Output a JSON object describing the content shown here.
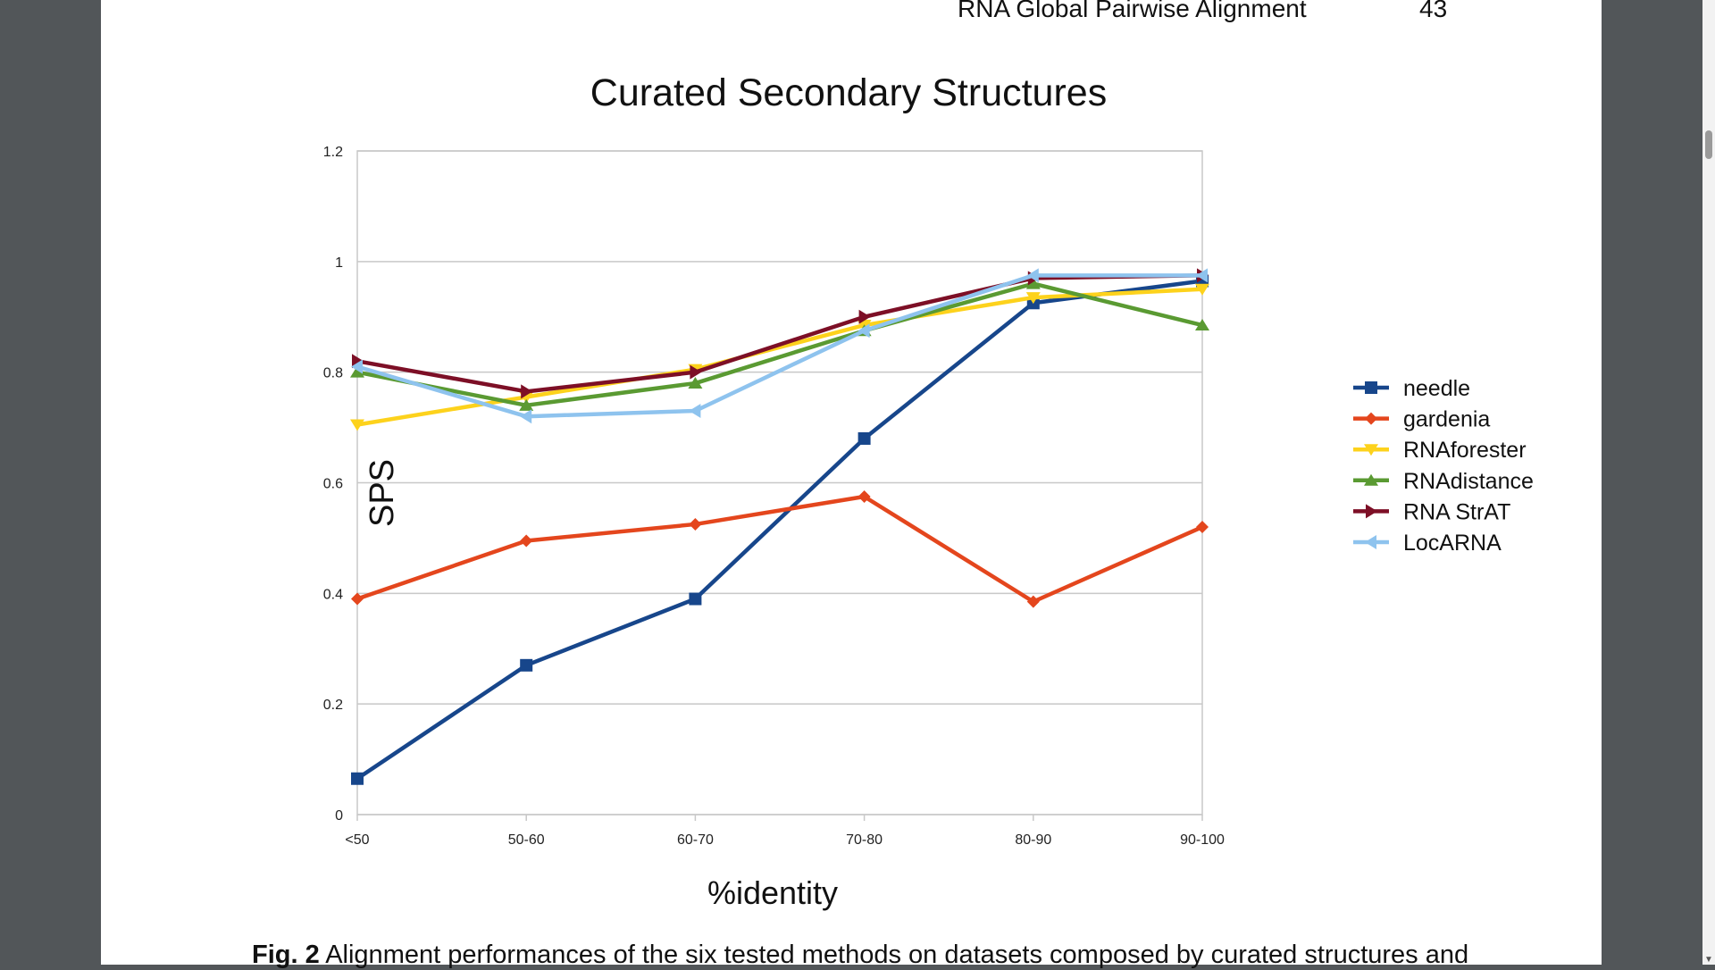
{
  "header": {
    "running_head": "RNA Global Pairwise Alignment",
    "page_number": "43"
  },
  "caption": {
    "fig_label": "Fig. 2",
    "text": "Alignment performances of the six tested methods on datasets composed by curated structures and"
  },
  "chart_data": {
    "type": "line",
    "title": "Curated Secondary Structures",
    "xlabel": "%identity",
    "ylabel": "SPS",
    "categories": [
      "<50",
      "50-60",
      "60-70",
      "70-80",
      "80-90",
      "90-100"
    ],
    "ylim": [
      0,
      1.2
    ],
    "yticks": [
      "0",
      "0.2",
      "0.4",
      "0.6",
      "0.8",
      "1",
      "1.2"
    ],
    "grid": true,
    "legend_position": "right",
    "series": [
      {
        "name": "needle",
        "color": "#17468b",
        "marker": "square",
        "values": [
          0.065,
          0.27,
          0.39,
          0.68,
          0.925,
          0.965
        ]
      },
      {
        "name": "gardenia",
        "color": "#e4461d",
        "marker": "diamond",
        "values": [
          0.39,
          0.495,
          0.525,
          0.575,
          0.385,
          0.52
        ]
      },
      {
        "name": "RNAforester",
        "color": "#fdd21c",
        "marker": "triangle-down",
        "values": [
          0.705,
          0.755,
          0.805,
          0.885,
          0.935,
          0.95
        ]
      },
      {
        "name": "RNAdistance",
        "color": "#5a9a32",
        "marker": "triangle-up",
        "values": [
          0.8,
          0.74,
          0.78,
          0.875,
          0.96,
          0.885
        ]
      },
      {
        "name": "RNA StrAT",
        "color": "#7d0f26",
        "marker": "triangle-right",
        "values": [
          0.82,
          0.765,
          0.8,
          0.9,
          0.97,
          0.975
        ]
      },
      {
        "name": "LocARNA",
        "color": "#8ec3ee",
        "marker": "triangle-left",
        "values": [
          0.81,
          0.72,
          0.73,
          0.875,
          0.975,
          0.975
        ]
      }
    ]
  }
}
